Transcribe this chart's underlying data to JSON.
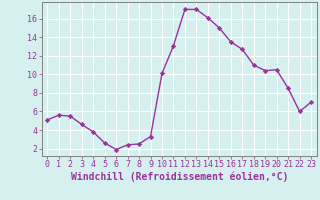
{
  "x": [
    0,
    1,
    2,
    3,
    4,
    5,
    6,
    7,
    8,
    9,
    10,
    11,
    12,
    13,
    14,
    15,
    16,
    17,
    18,
    19,
    20,
    21,
    22,
    23
  ],
  "y": [
    5.1,
    5.6,
    5.5,
    4.6,
    3.8,
    2.6,
    1.9,
    2.4,
    2.5,
    3.3,
    10.1,
    13.1,
    17.0,
    17.0,
    16.1,
    15.0,
    13.5,
    12.7,
    11.0,
    10.4,
    10.5,
    8.5,
    6.0,
    7.0
  ],
  "line_color": "#993399",
  "marker": "D",
  "markersize": 2.2,
  "linewidth": 1.0,
  "xlabel": "Windchill (Refroidissement éolien,°C)",
  "xlabel_fontsize": 7,
  "xtick_labels": [
    "0",
    "1",
    "2",
    "3",
    "4",
    "5",
    "6",
    "7",
    "8",
    "9",
    "10",
    "11",
    "12",
    "13",
    "14",
    "15",
    "16",
    "17",
    "18",
    "19",
    "20",
    "21",
    "22",
    "23"
  ],
  "yticks": [
    2,
    4,
    6,
    8,
    10,
    12,
    14,
    16
  ],
  "ylim": [
    1.2,
    17.8
  ],
  "xlim": [
    -0.5,
    23.5
  ],
  "bg_color": "#d6f0f0",
  "grid_color": "#b8d8d8",
  "tick_color": "#993399",
  "tick_fontsize": 6,
  "spine_color": "#808080"
}
